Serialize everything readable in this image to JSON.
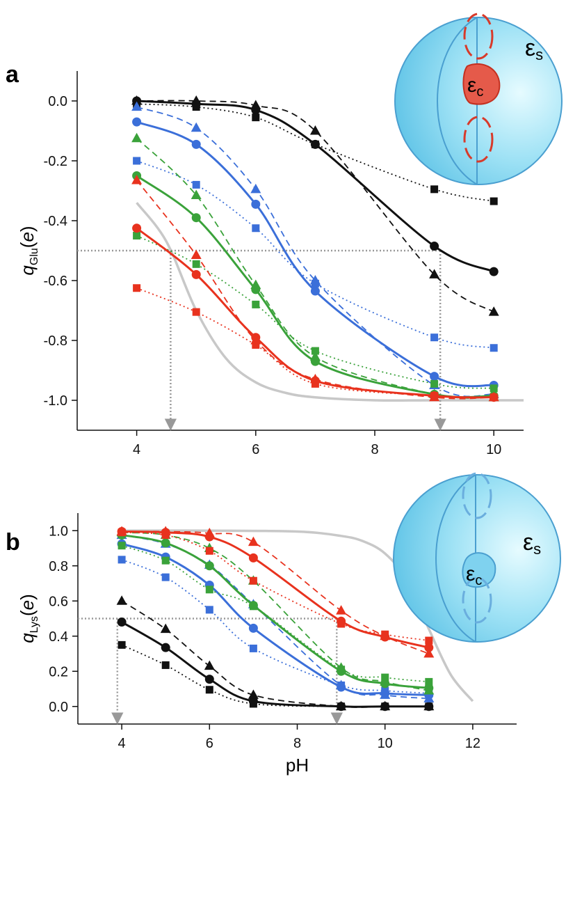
{
  "chart_data": [
    {
      "type": "line",
      "panel": "a",
      "ylabel": {
        "symbol": "q",
        "subscript": "Glu",
        "open": "(",
        "unit": "e",
        "close": ")"
      },
      "inset": {
        "outer": "ε",
        "outer_sub": "s",
        "inner": "ε",
        "inner_sub": "c",
        "color": "#e03a2a"
      },
      "xlim": [
        3,
        10.5
      ],
      "ylim": [
        -1.1,
        0.1
      ],
      "xticks": [
        4,
        6,
        8,
        10
      ],
      "yticks": [
        {
          "value": 0,
          "label": "0.0"
        },
        {
          "value": -0.2,
          "label": "-0.2"
        },
        {
          "value": -0.4,
          "label": "-0.4"
        },
        {
          "value": -0.6,
          "label": "-0.6"
        },
        {
          "value": -0.8,
          "label": "-0.8"
        },
        {
          "value": -1,
          "label": "-1.0"
        }
      ],
      "x": [
        4,
        5,
        6,
        7,
        9,
        10
      ],
      "series": [
        {
          "color": "#111111",
          "marker": "circle",
          "line": "solid",
          "values": [
            0,
            -0.01,
            -0.03,
            -0.145,
            -0.485,
            -0.57
          ]
        },
        {
          "color": "#111111",
          "marker": "triangle",
          "line": "dashed",
          "values": [
            0,
            0,
            -0.015,
            -0.1,
            -0.58,
            -0.705
          ]
        },
        {
          "color": "#111111",
          "marker": "square",
          "line": "dotted",
          "values": [
            -0.01,
            -0.02,
            -0.055,
            -0.145,
            -0.295,
            -0.335
          ]
        },
        {
          "color": "#3b6fd9",
          "marker": "circle",
          "line": "solid",
          "values": [
            -0.07,
            -0.145,
            -0.345,
            -0.635,
            -0.92,
            -0.95
          ]
        },
        {
          "color": "#3b6fd9",
          "marker": "triangle",
          "line": "dashed",
          "values": [
            -0.02,
            -0.09,
            -0.295,
            -0.6,
            -0.95,
            -0.98
          ]
        },
        {
          "color": "#3b6fd9",
          "marker": "square",
          "line": "dotted",
          "values": [
            -0.2,
            -0.28,
            -0.425,
            -0.61,
            -0.79,
            -0.825
          ]
        },
        {
          "color": "#3aa23a",
          "marker": "circle",
          "line": "solid",
          "values": [
            -0.25,
            -0.39,
            -0.63,
            -0.87,
            -0.98,
            -0.985
          ]
        },
        {
          "color": "#3aa23a",
          "marker": "triangle",
          "line": "dashed",
          "values": [
            -0.125,
            -0.315,
            -0.615,
            -0.855,
            -0.98,
            -0.99
          ]
        },
        {
          "color": "#3aa23a",
          "marker": "square",
          "line": "dotted",
          "values": [
            -0.45,
            -0.545,
            -0.68,
            -0.835,
            -0.945,
            -0.96
          ]
        },
        {
          "color": "#e8321e",
          "marker": "circle",
          "line": "solid",
          "values": [
            -0.425,
            -0.58,
            -0.79,
            -0.935,
            -0.985,
            -0.99
          ]
        },
        {
          "color": "#e8321e",
          "marker": "triangle",
          "line": "dashed",
          "values": [
            -0.265,
            -0.515,
            -0.8,
            -0.93,
            -0.99,
            -0.99
          ]
        },
        {
          "color": "#e8321e",
          "marker": "square",
          "line": "dotted",
          "values": [
            -0.625,
            -0.705,
            -0.815,
            -0.945,
            -0.985,
            -0.99
          ]
        }
      ],
      "reference_curve": {
        "color": "#c8c8c8",
        "x": [
          4,
          4.5,
          5,
          5.5,
          6,
          6.5,
          7,
          8,
          9,
          10.5
        ],
        "values": [
          -0.34,
          -0.47,
          -0.7,
          -0.86,
          -0.94,
          -0.975,
          -0.99,
          -1,
          -1,
          -1
        ]
      },
      "guides": {
        "y": -0.5,
        "x": [
          4.57,
          9.1
        ]
      }
    },
    {
      "type": "line",
      "panel": "b",
      "ylabel": {
        "symbol": "q",
        "subscript": "Lys",
        "open": "(",
        "unit": "e",
        "close": ")"
      },
      "xlabel": "pH",
      "inset": {
        "outer": "ε",
        "outer_sub": "s",
        "inner": "ε",
        "inner_sub": "c",
        "color": "#6cc8ea"
      },
      "xlim": [
        3,
        13
      ],
      "ylim": [
        -0.1,
        1.1
      ],
      "xticks": [
        4,
        6,
        8,
        10,
        12
      ],
      "yticks": [
        {
          "value": 0,
          "label": "0.0"
        },
        {
          "value": 0.2,
          "label": "0.2"
        },
        {
          "value": 0.4,
          "label": "0.4"
        },
        {
          "value": 0.6,
          "label": "0.6"
        },
        {
          "value": 0.8,
          "label": "0.8"
        },
        {
          "value": 1,
          "label": "1.0"
        }
      ],
      "x": [
        4,
        5,
        6,
        7,
        9,
        10,
        11
      ],
      "series": [
        {
          "color": "#111111",
          "marker": "circle",
          "line": "solid",
          "values": [
            0.48,
            0.335,
            0.155,
            0.03,
            0,
            0,
            0
          ]
        },
        {
          "color": "#111111",
          "marker": "triangle",
          "line": "dashed",
          "values": [
            0.6,
            0.44,
            0.23,
            0.065,
            0,
            0,
            0
          ]
        },
        {
          "color": "#111111",
          "marker": "square",
          "line": "dotted",
          "values": [
            0.35,
            0.235,
            0.095,
            0.015,
            0,
            0,
            0
          ]
        },
        {
          "color": "#3b6fd9",
          "marker": "circle",
          "line": "solid",
          "values": [
            0.925,
            0.85,
            0.69,
            0.445,
            0.11,
            0.075,
            0.065
          ]
        },
        {
          "color": "#3b6fd9",
          "marker": "triangle",
          "line": "dashed",
          "values": [
            0.975,
            0.925,
            0.805,
            0.58,
            0.12,
            0.065,
            0.045
          ]
        },
        {
          "color": "#3b6fd9",
          "marker": "square",
          "line": "dotted",
          "values": [
            0.835,
            0.735,
            0.55,
            0.33,
            0.12,
            0.09,
            0.075
          ]
        },
        {
          "color": "#3aa23a",
          "marker": "circle",
          "line": "solid",
          "values": [
            0.975,
            0.93,
            0.8,
            0.575,
            0.2,
            0.13,
            0.105
          ]
        },
        {
          "color": "#3aa23a",
          "marker": "triangle",
          "line": "dashed",
          "values": [
            0.99,
            0.975,
            0.9,
            0.715,
            0.22,
            0.14,
            0.09
          ]
        },
        {
          "color": "#3aa23a",
          "marker": "square",
          "line": "dotted",
          "values": [
            0.915,
            0.83,
            0.665,
            0.57,
            0.21,
            0.165,
            0.14
          ]
        },
        {
          "color": "#e8321e",
          "marker": "circle",
          "line": "solid",
          "values": [
            0.995,
            0.99,
            0.965,
            0.845,
            0.485,
            0.395,
            0.335
          ]
        },
        {
          "color": "#e8321e",
          "marker": "triangle",
          "line": "dashed",
          "values": [
            0.995,
            0.995,
            0.985,
            0.935,
            0.545,
            0.4,
            0.3
          ]
        },
        {
          "color": "#e8321e",
          "marker": "square",
          "line": "dotted",
          "values": [
            0.99,
            0.975,
            0.885,
            0.715,
            0.47,
            0.41,
            0.375
          ]
        }
      ],
      "reference_curve": {
        "color": "#c8c8c8",
        "x": [
          4,
          6,
          8,
          9,
          9.5,
          10,
          10.5,
          11,
          11.5,
          12
        ],
        "values": [
          1,
          1,
          0.995,
          0.97,
          0.94,
          0.87,
          0.72,
          0.44,
          0.18,
          0.03
        ]
      },
      "guides": {
        "y": 0.5,
        "x": [
          3.9,
          8.9
        ]
      }
    }
  ]
}
